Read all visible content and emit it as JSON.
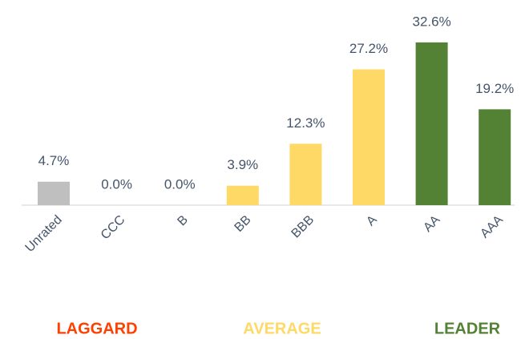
{
  "chart_data": {
    "type": "bar",
    "categories": [
      "Unrated",
      "CCC",
      "B",
      "BB",
      "BBB",
      "A",
      "AA",
      "AAA"
    ],
    "values": [
      4.7,
      0.0,
      0.0,
      3.9,
      12.3,
      27.2,
      32.6,
      19.2
    ],
    "value_labels": [
      "4.7%",
      "0.0%",
      "0.0%",
      "3.9%",
      "12.3%",
      "27.2%",
      "32.6%",
      "19.2%"
    ],
    "colors": [
      "#bfbfbf",
      "#bfbfbf",
      "#bfbfbf",
      "#ffd966",
      "#ffd966",
      "#ffd966",
      "#548235",
      "#548235"
    ],
    "groups": [
      {
        "label": "LAGGARD",
        "color": "#ff4000"
      },
      {
        "label": "AVERAGE",
        "color": "#ffd966"
      },
      {
        "label": "LEADER",
        "color": "#548235"
      }
    ]
  }
}
